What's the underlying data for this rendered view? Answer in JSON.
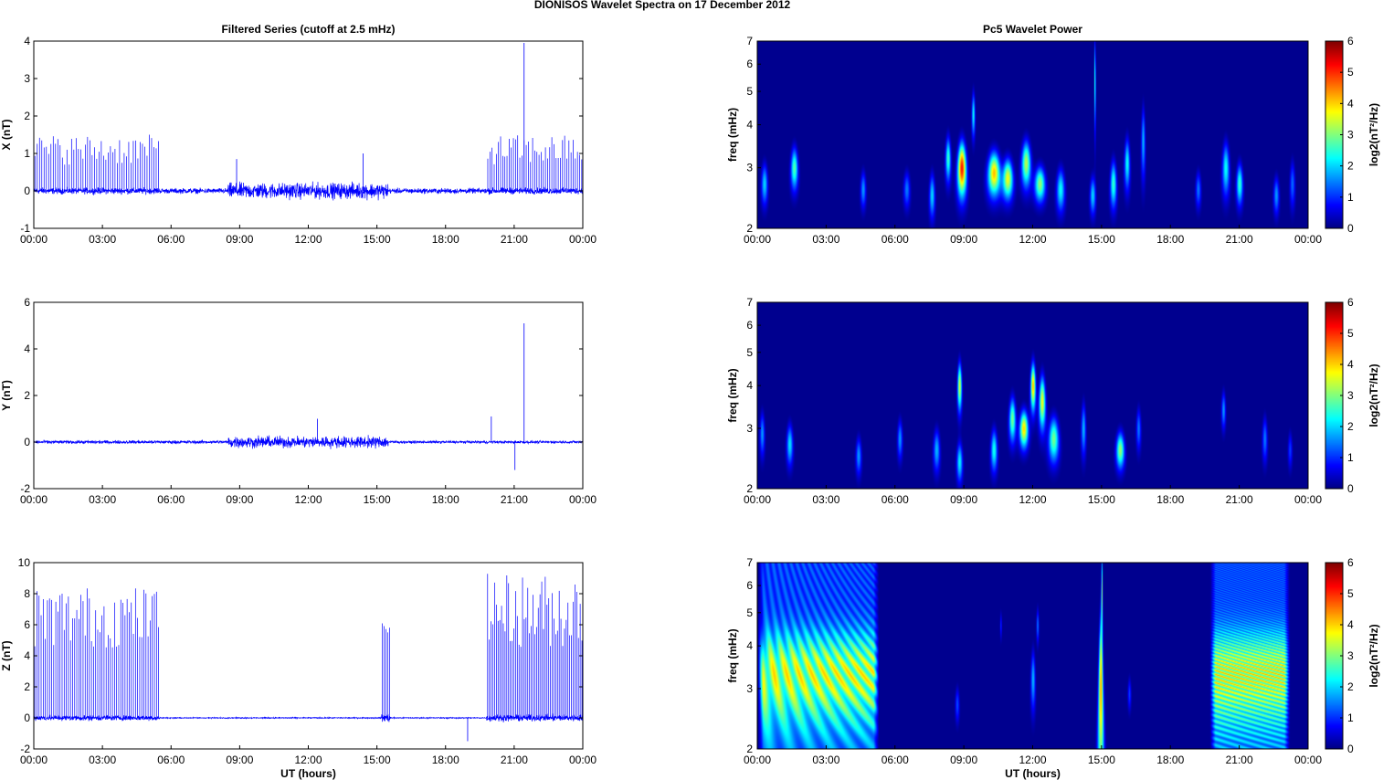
{
  "figure": {
    "title": "DIONISOS Wavelet Spectra on 17 December  2012"
  },
  "chart_data": [
    {
      "type": "line",
      "title": "Filtered Series (cutoff at 2.5 mHz)",
      "xlabel": "",
      "ylabel": "X (nT)",
      "xlim": [
        "00:00",
        "24:00"
      ],
      "ylim": [
        -1,
        4
      ],
      "x_ticks": [
        "00:00",
        "03:00",
        "06:00",
        "09:00",
        "12:00",
        "15:00",
        "18:00",
        "21:00",
        "00:00"
      ],
      "y_ticks": [
        "-1",
        "0",
        "1",
        "2",
        "3",
        "4"
      ],
      "color": "#0000ff",
      "noise_envelope": [
        {
          "from_h": 0,
          "to_h": 5.5,
          "amp": 0.12
        },
        {
          "from_h": 5.5,
          "to_h": 8.5,
          "amp": 0.1
        },
        {
          "from_h": 8.5,
          "to_h": 15.5,
          "amp": 0.3
        },
        {
          "from_h": 15.5,
          "to_h": 19.8,
          "amp": 0.1
        },
        {
          "from_h": 19.8,
          "to_h": 24,
          "amp": 0.12
        }
      ],
      "spikes": [
        {
          "from_h": 0,
          "to_h": 5.5,
          "count": 55,
          "min": 0.7,
          "max": 1.5
        },
        {
          "from_h": 19.8,
          "to_h": 24,
          "count": 45,
          "min": 0.7,
          "max": 1.5
        }
      ],
      "notable_peaks": [
        {
          "time": "21:26",
          "value": 3.95
        },
        {
          "time": "08:52",
          "value": 0.85
        },
        {
          "time": "14:24",
          "value": 1.0
        }
      ]
    },
    {
      "type": "line",
      "title": "",
      "xlabel": "",
      "ylabel": "Y (nT)",
      "xlim": [
        "00:00",
        "24:00"
      ],
      "ylim": [
        -2,
        6
      ],
      "x_ticks": [
        "00:00",
        "03:00",
        "06:00",
        "09:00",
        "12:00",
        "15:00",
        "18:00",
        "21:00",
        "00:00"
      ],
      "y_ticks": [
        "-2",
        "0",
        "2",
        "4",
        "6"
      ],
      "color": "#0000ff",
      "noise_envelope": [
        {
          "from_h": 0,
          "to_h": 8.5,
          "amp": 0.1
        },
        {
          "from_h": 8.5,
          "to_h": 15.5,
          "amp": 0.35
        },
        {
          "from_h": 15.5,
          "to_h": 24,
          "amp": 0.08
        }
      ],
      "spikes": [],
      "notable_peaks": [
        {
          "time": "21:26",
          "value": 5.1
        },
        {
          "time": "21:02",
          "value": -1.2
        },
        {
          "time": "20:00",
          "value": 1.1
        },
        {
          "time": "12:24",
          "value": 1.0
        }
      ]
    },
    {
      "type": "line",
      "title": "",
      "xlabel": "UT (hours)",
      "ylabel": "Z (nT)",
      "xlim": [
        "00:00",
        "24:00"
      ],
      "ylim": [
        -2,
        10
      ],
      "x_ticks": [
        "00:00",
        "03:00",
        "06:00",
        "09:00",
        "12:00",
        "15:00",
        "18:00",
        "21:00",
        "00:00"
      ],
      "y_ticks": [
        "-2",
        "0",
        "2",
        "4",
        "6",
        "8",
        "10"
      ],
      "color": "#0000ff",
      "noise_envelope": [
        {
          "from_h": 0,
          "to_h": 5.5,
          "amp": 0.25
        },
        {
          "from_h": 5.5,
          "to_h": 15.2,
          "amp": 0.05
        },
        {
          "from_h": 15.2,
          "to_h": 15.6,
          "amp": 0.4
        },
        {
          "from_h": 15.6,
          "to_h": 19.8,
          "amp": 0.05
        },
        {
          "from_h": 19.8,
          "to_h": 24,
          "amp": 0.3
        }
      ],
      "spikes": [
        {
          "from_h": 0,
          "to_h": 5.5,
          "count": 60,
          "min": 4.5,
          "max": 8.5
        },
        {
          "from_h": 15.2,
          "to_h": 15.6,
          "count": 5,
          "min": 5.5,
          "max": 6.5
        },
        {
          "from_h": 19.8,
          "to_h": 24,
          "count": 55,
          "min": 4.5,
          "max": 9.3
        }
      ],
      "notable_peaks": [
        {
          "time": "18:58",
          "value": -1.5
        }
      ]
    },
    {
      "type": "heatmap",
      "title": "Pc5 Wavelet Power",
      "xlabel": "",
      "ylabel": "freq (mHz)",
      "xlim": [
        "00:00",
        "24:00"
      ],
      "ylim": [
        2,
        7
      ],
      "y_scale": "log",
      "x_ticks": [
        "00:00",
        "03:00",
        "06:00",
        "09:00",
        "12:00",
        "15:00",
        "18:00",
        "21:00",
        "00:00"
      ],
      "y_ticks": [
        "2",
        "3",
        "4",
        "5",
        "6",
        "7"
      ],
      "colorbar": {
        "label": "log2(nT²/Hz)",
        "range": [
          0,
          6
        ],
        "ticks": [
          "0",
          "1",
          "2",
          "3",
          "4",
          "5",
          "6"
        ]
      },
      "colormap": "jet",
      "blobs": [
        {
          "t": 0.3,
          "f": 2.7,
          "dt": 0.12,
          "df": 0.35,
          "p": 2.2
        },
        {
          "t": 1.6,
          "f": 3.0,
          "dt": 0.15,
          "df": 0.4,
          "p": 3.0
        },
        {
          "t": 4.6,
          "f": 2.6,
          "dt": 0.1,
          "df": 0.3,
          "p": 1.8
        },
        {
          "t": 6.5,
          "f": 2.6,
          "dt": 0.12,
          "df": 0.3,
          "p": 1.6
        },
        {
          "t": 7.6,
          "f": 2.5,
          "dt": 0.1,
          "df": 0.35,
          "p": 2.2
        },
        {
          "t": 8.3,
          "f": 3.2,
          "dt": 0.12,
          "df": 0.45,
          "p": 2.8
        },
        {
          "t": 8.9,
          "f": 3.0,
          "dt": 0.18,
          "df": 0.5,
          "p": 5.6
        },
        {
          "t": 9.4,
          "f": 4.3,
          "dt": 0.1,
          "df": 0.6,
          "p": 2.5
        },
        {
          "t": 10.3,
          "f": 2.9,
          "dt": 0.25,
          "df": 0.4,
          "p": 4.5
        },
        {
          "t": 10.9,
          "f": 2.8,
          "dt": 0.2,
          "df": 0.35,
          "p": 4.0
        },
        {
          "t": 11.7,
          "f": 3.1,
          "dt": 0.2,
          "df": 0.45,
          "p": 3.6
        },
        {
          "t": 12.3,
          "f": 2.7,
          "dt": 0.2,
          "df": 0.3,
          "p": 3.4
        },
        {
          "t": 13.2,
          "f": 2.6,
          "dt": 0.15,
          "df": 0.35,
          "p": 2.5
        },
        {
          "t": 14.6,
          "f": 2.5,
          "dt": 0.1,
          "df": 0.3,
          "p": 2.2
        },
        {
          "t": 14.7,
          "f": 5.5,
          "dt": 0.05,
          "df": 1.5,
          "p": 3.2
        },
        {
          "t": 15.5,
          "f": 2.7,
          "dt": 0.12,
          "df": 0.4,
          "p": 2.8
        },
        {
          "t": 16.1,
          "f": 3.1,
          "dt": 0.12,
          "df": 0.5,
          "p": 2.5
        },
        {
          "t": 16.8,
          "f": 3.6,
          "dt": 0.1,
          "df": 0.8,
          "p": 2.0
        },
        {
          "t": 19.2,
          "f": 2.6,
          "dt": 0.1,
          "df": 0.3,
          "p": 1.6
        },
        {
          "t": 20.4,
          "f": 3.0,
          "dt": 0.15,
          "df": 0.5,
          "p": 2.5
        },
        {
          "t": 21.0,
          "f": 2.7,
          "dt": 0.12,
          "df": 0.35,
          "p": 2.8
        },
        {
          "t": 22.6,
          "f": 2.5,
          "dt": 0.1,
          "df": 0.3,
          "p": 1.8
        },
        {
          "t": 23.3,
          "f": 2.7,
          "dt": 0.1,
          "df": 0.4,
          "p": 1.5
        }
      ]
    },
    {
      "type": "heatmap",
      "title": "",
      "xlabel": "",
      "ylabel": "freq (mHz)",
      "xlim": [
        "00:00",
        "24:00"
      ],
      "ylim": [
        2,
        7
      ],
      "y_scale": "log",
      "x_ticks": [
        "00:00",
        "03:00",
        "06:00",
        "09:00",
        "12:00",
        "15:00",
        "18:00",
        "21:00",
        "00:00"
      ],
      "y_ticks": [
        "2",
        "3",
        "4",
        "5",
        "6",
        "7"
      ],
      "colorbar": {
        "label": "log2(nT²/Hz)",
        "range": [
          0,
          6
        ],
        "ticks": [
          "0",
          "1",
          "2",
          "3",
          "4",
          "5",
          "6"
        ]
      },
      "colormap": "jet",
      "blobs": [
        {
          "t": 0.2,
          "f": 2.9,
          "dt": 0.1,
          "df": 0.4,
          "p": 1.8
        },
        {
          "t": 1.4,
          "f": 2.7,
          "dt": 0.12,
          "df": 0.35,
          "p": 2.3
        },
        {
          "t": 4.4,
          "f": 2.5,
          "dt": 0.1,
          "df": 0.3,
          "p": 1.8
        },
        {
          "t": 6.2,
          "f": 2.8,
          "dt": 0.1,
          "df": 0.35,
          "p": 1.8
        },
        {
          "t": 7.8,
          "f": 2.6,
          "dt": 0.12,
          "df": 0.35,
          "p": 2.0
        },
        {
          "t": 8.8,
          "f": 4.0,
          "dt": 0.12,
          "df": 0.6,
          "p": 3.8
        },
        {
          "t": 8.8,
          "f": 2.4,
          "dt": 0.1,
          "df": 0.3,
          "p": 2.4
        },
        {
          "t": 10.3,
          "f": 2.6,
          "dt": 0.12,
          "df": 0.35,
          "p": 2.6
        },
        {
          "t": 11.1,
          "f": 3.2,
          "dt": 0.15,
          "df": 0.45,
          "p": 3.2
        },
        {
          "t": 11.6,
          "f": 3.0,
          "dt": 0.18,
          "df": 0.35,
          "p": 4.3
        },
        {
          "t": 12.0,
          "f": 4.0,
          "dt": 0.14,
          "df": 0.6,
          "p": 4.5
        },
        {
          "t": 12.4,
          "f": 3.6,
          "dt": 0.16,
          "df": 0.6,
          "p": 4.0
        },
        {
          "t": 12.9,
          "f": 2.8,
          "dt": 0.2,
          "df": 0.4,
          "p": 3.2
        },
        {
          "t": 14.2,
          "f": 3.0,
          "dt": 0.1,
          "df": 0.5,
          "p": 2.0
        },
        {
          "t": 15.8,
          "f": 2.6,
          "dt": 0.15,
          "df": 0.3,
          "p": 3.4
        },
        {
          "t": 16.6,
          "f": 3.0,
          "dt": 0.1,
          "df": 0.4,
          "p": 1.6
        },
        {
          "t": 20.3,
          "f": 3.4,
          "dt": 0.1,
          "df": 0.4,
          "p": 1.8
        },
        {
          "t": 22.1,
          "f": 2.8,
          "dt": 0.1,
          "df": 0.4,
          "p": 1.6
        },
        {
          "t": 23.2,
          "f": 2.6,
          "dt": 0.08,
          "df": 0.3,
          "p": 1.2
        }
      ]
    },
    {
      "type": "heatmap",
      "title": "",
      "xlabel": "UT (hours)",
      "ylabel": "freq (mHz)",
      "xlim": [
        "00:00",
        "24:00"
      ],
      "ylim": [
        2,
        7
      ],
      "y_scale": "log",
      "x_ticks": [
        "00:00",
        "03:00",
        "06:00",
        "09:00",
        "12:00",
        "15:00",
        "18:00",
        "21:00",
        "00:00"
      ],
      "y_ticks": [
        "2",
        "3",
        "4",
        "5",
        "6",
        "7"
      ],
      "colorbar": {
        "label": "log2(nT²/Hz)",
        "range": [
          0,
          6
        ],
        "ticks": [
          "0",
          "1",
          "2",
          "3",
          "4",
          "5",
          "6"
        ]
      },
      "colormap": "jet",
      "bands": [
        {
          "from_h": 0,
          "to_h": 5.3,
          "peak": 4.4
        },
        {
          "from_h": 19.7,
          "to_h": 23.2,
          "peak": 4.6
        }
      ],
      "blobs": [
        {
          "t": 14.95,
          "f": 3.0,
          "dt": 0.1,
          "df": 1.6,
          "p": 4.6
        },
        {
          "t": 15.0,
          "f": 5.8,
          "dt": 0.06,
          "df": 1.5,
          "p": 3.3
        },
        {
          "t": 12.0,
          "f": 3.2,
          "dt": 0.1,
          "df": 0.6,
          "p": 2.0
        },
        {
          "t": 12.2,
          "f": 4.6,
          "dt": 0.08,
          "df": 0.5,
          "p": 1.6
        },
        {
          "t": 8.7,
          "f": 2.7,
          "dt": 0.08,
          "df": 0.3,
          "p": 1.3
        },
        {
          "t": 10.6,
          "f": 4.6,
          "dt": 0.06,
          "df": 0.4,
          "p": 1.1
        },
        {
          "t": 16.2,
          "f": 2.9,
          "dt": 0.07,
          "df": 0.3,
          "p": 1.2
        }
      ]
    }
  ]
}
